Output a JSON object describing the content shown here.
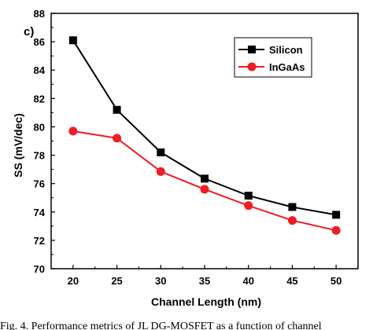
{
  "caption": "Fig. 4. Performance metrics of JL DG-MOSFET as a function of channel",
  "chart_data": {
    "type": "line",
    "panel_label": "c)",
    "xlabel": "Channel Length (nm)",
    "ylabel": "SS (mV/dec)",
    "x": [
      20,
      25,
      30,
      35,
      40,
      45,
      50
    ],
    "xlim": [
      17.5,
      52.5
    ],
    "xticks": [
      20,
      25,
      30,
      35,
      40,
      45,
      50
    ],
    "ylim": [
      70,
      88
    ],
    "yticks": [
      70,
      72,
      74,
      76,
      78,
      80,
      82,
      84,
      86,
      88
    ],
    "legend_position": "top-right",
    "series": [
      {
        "name": "Silicon",
        "color": "#000000",
        "marker": "square",
        "values": [
          86.1,
          81.2,
          78.2,
          76.35,
          75.15,
          74.35,
          73.8
        ]
      },
      {
        "name": "InGaAs",
        "color": "#ee1c24",
        "marker": "circle",
        "values": [
          79.7,
          79.2,
          76.85,
          75.6,
          74.45,
          73.4,
          72.7
        ]
      }
    ]
  }
}
